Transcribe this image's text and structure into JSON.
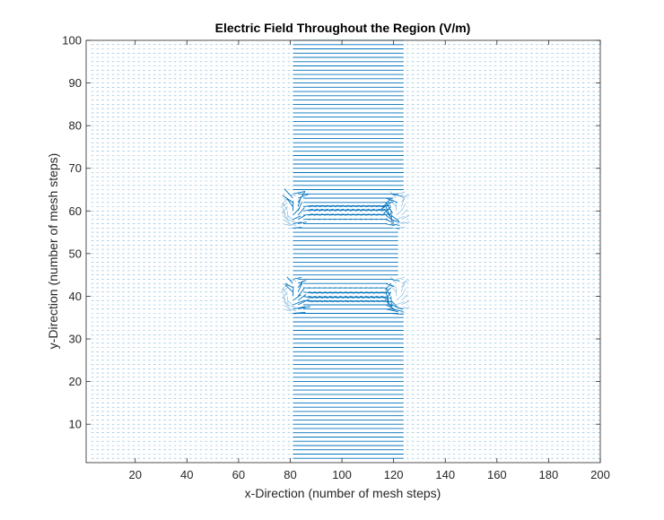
{
  "chart_data": {
    "type": "quiver",
    "title": "Electric Field Throughout the Region (V/m)",
    "xlabel": "x-Direction (number of mesh steps)",
    "ylabel": "y-Direction (number of mesh steps)",
    "xlim": [
      1,
      200
    ],
    "ylim": [
      1,
      100
    ],
    "xticks": [
      20,
      40,
      60,
      80,
      100,
      120,
      140,
      160,
      180,
      200
    ],
    "yticks": [
      10,
      20,
      30,
      40,
      50,
      60,
      70,
      80,
      90,
      100
    ],
    "grid": false,
    "legend": "none",
    "arrow_color": "#0072BD",
    "sampling": {
      "x_step": 2,
      "y_step": 1
    },
    "regions": [
      {
        "name": "background",
        "x_range": [
          1,
          200
        ],
        "y_range": [
          1,
          100
        ],
        "magnitude": "very small, near-zero dots"
      },
      {
        "name": "strong-band-bottom",
        "x_range": [
          80,
          120
        ],
        "y_range": [
          1,
          38
        ],
        "direction": "horizontal (+x)",
        "magnitude": "large"
      },
      {
        "name": "strong-band-top",
        "x_range": [
          80,
          120
        ],
        "y_range": [
          62,
          100
        ],
        "direction": "horizontal (+x)",
        "magnitude": "large"
      },
      {
        "name": "middle-band",
        "x_range": [
          80,
          120
        ],
        "y_range": [
          42,
          58
        ],
        "direction": "horizontal (+x)",
        "magnitude": "small"
      }
    ],
    "singular_points": [
      [
        80,
        40
      ],
      [
        120,
        40
      ],
      [
        80,
        60
      ],
      [
        120,
        60
      ]
    ]
  }
}
